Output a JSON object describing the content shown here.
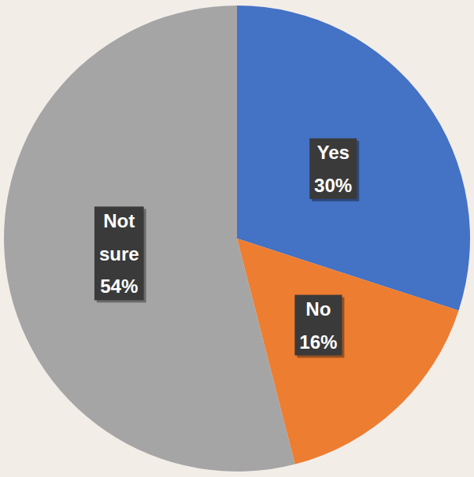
{
  "chart_data": {
    "type": "pie",
    "categories": [
      "Yes",
      "No",
      "Not sure"
    ],
    "values": [
      30,
      16,
      54
    ],
    "value_labels": [
      "30%",
      "16%",
      "54%"
    ],
    "colors": [
      "#4472c4",
      "#ed7d31",
      "#a5a5a5"
    ],
    "data_labels": true
  }
}
